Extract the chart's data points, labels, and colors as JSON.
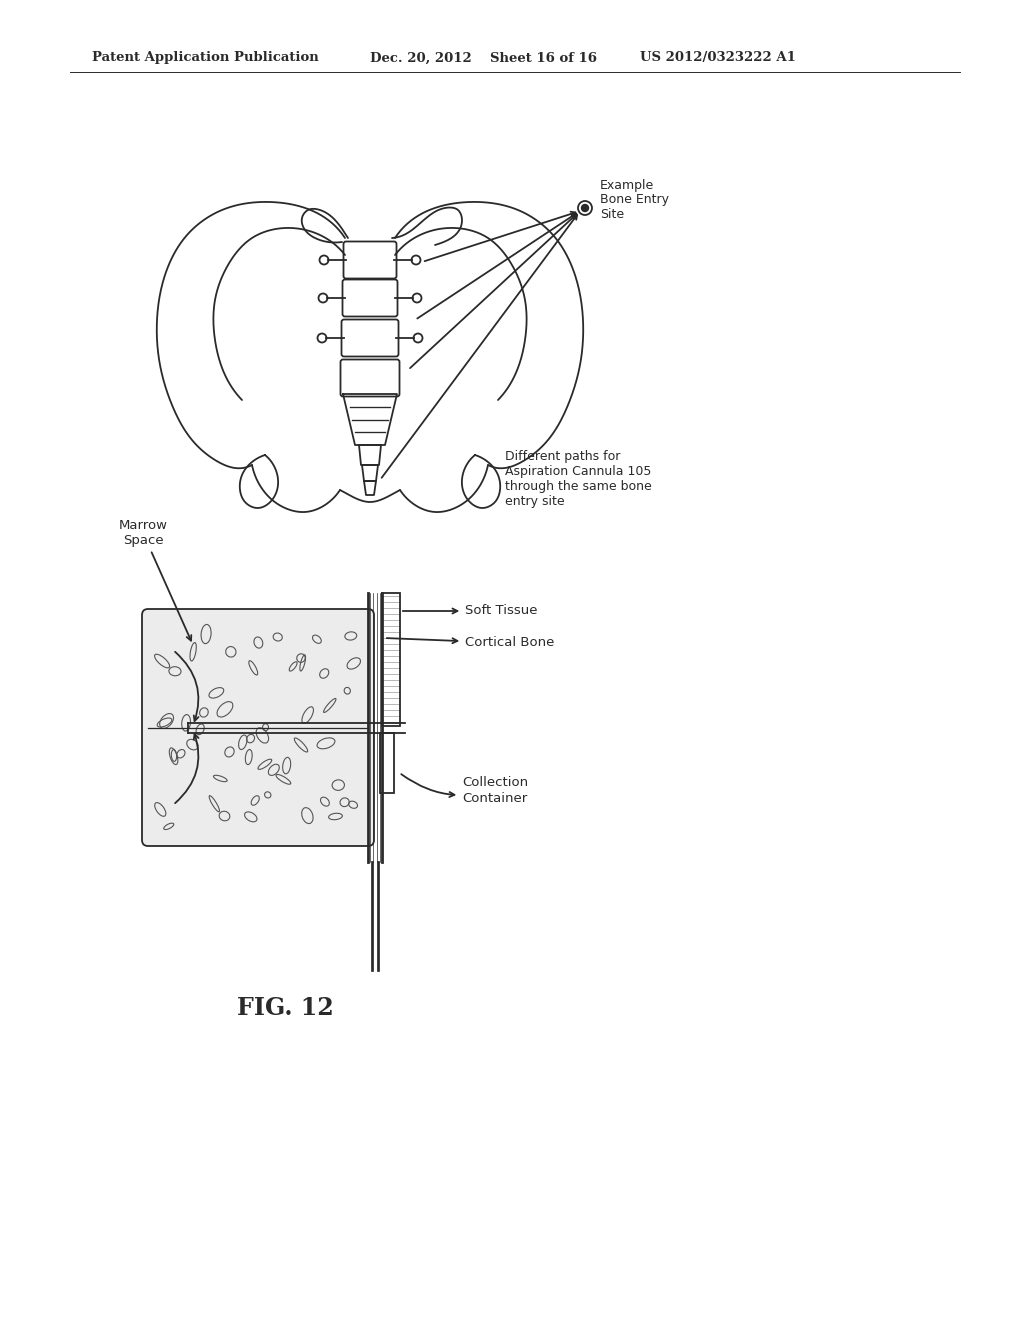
{
  "bg_color": "#ffffff",
  "header_line1": "Patent Application Publication",
  "header_line2": "Dec. 20, 2012",
  "header_line3": "Sheet 16 of 16",
  "header_line4": "US 2012/0323222 A1",
  "fig12_label": "FIG. 12",
  "label_bone_entry": "Example\nBone Entry\nSite",
  "label_diff_paths": "Different paths for\nAspiration Cannula 105\nthrough the same bone\nentry site",
  "label_marrow_space": "Marrow\nSpace",
  "label_soft_tissue": "Soft Tissue",
  "label_cortical_bone": "Cortical Bone",
  "label_collection_container": "Collection\nContainer",
  "line_color": "#2a2a2a",
  "bg_fill": "#d8d8d8"
}
